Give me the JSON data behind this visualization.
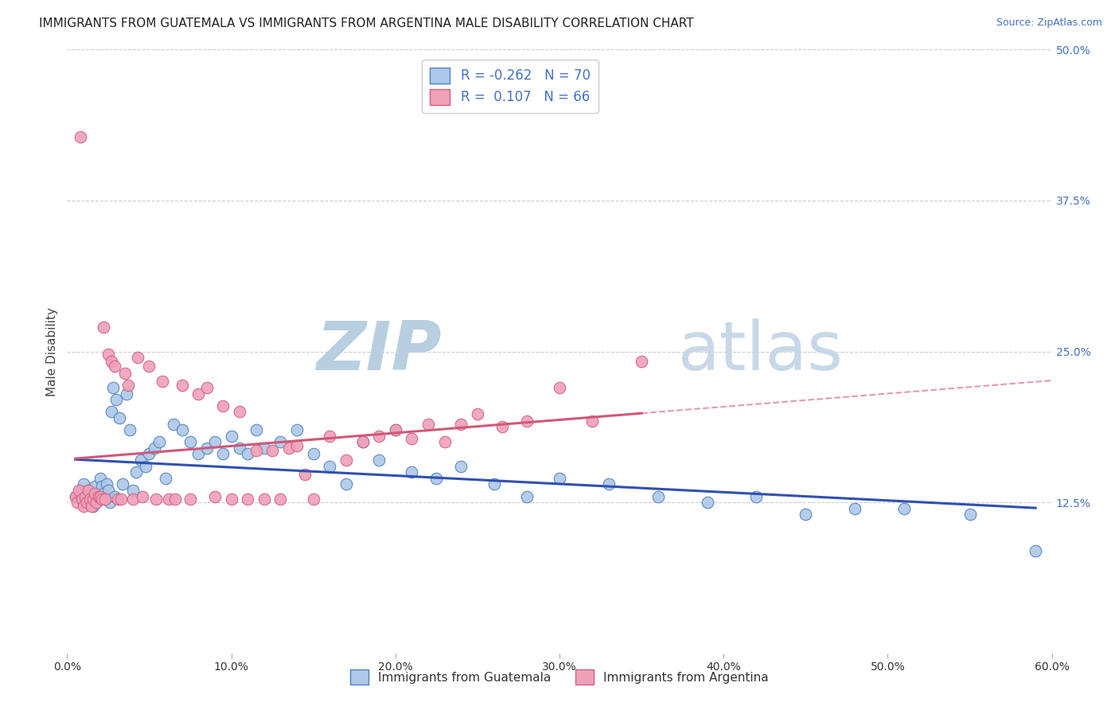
{
  "title": "IMMIGRANTS FROM GUATEMALA VS IMMIGRANTS FROM ARGENTINA MALE DISABILITY CORRELATION CHART",
  "source": "Source: ZipAtlas.com",
  "xlabel_blue": "Immigrants from Guatemala",
  "xlabel_pink": "Immigrants from Argentina",
  "ylabel": "Male Disability",
  "watermark_zip": "ZIP",
  "watermark_atlas": "atlas",
  "legend_blue_R": "-0.262",
  "legend_blue_N": "70",
  "legend_pink_R": "0.107",
  "legend_pink_N": "66",
  "xlim": [
    0.0,
    0.6
  ],
  "ylim": [
    0.0,
    0.5
  ],
  "xticks": [
    0.0,
    0.1,
    0.2,
    0.3,
    0.4,
    0.5,
    0.6
  ],
  "xtick_labels": [
    "0.0%",
    "10.0%",
    "20.0%",
    "30.0%",
    "40.0%",
    "50.0%",
    "60.0%"
  ],
  "yticks": [
    0.0,
    0.125,
    0.25,
    0.375,
    0.5
  ],
  "ytick_labels": [
    "",
    "12.5%",
    "25.0%",
    "37.5%",
    "50.0%"
  ],
  "color_blue": "#adc8e8",
  "color_blue_edge": "#5080c0",
  "color_blue_line": "#3050b0",
  "color_pink": "#f0a0b8",
  "color_pink_edge": "#d06080",
  "color_pink_line": "#d05878",
  "blue_x": [
    0.005,
    0.008,
    0.01,
    0.011,
    0.012,
    0.013,
    0.014,
    0.015,
    0.016,
    0.017,
    0.018,
    0.019,
    0.02,
    0.021,
    0.022,
    0.023,
    0.024,
    0.025,
    0.026,
    0.027,
    0.028,
    0.029,
    0.03,
    0.032,
    0.034,
    0.036,
    0.038,
    0.04,
    0.042,
    0.045,
    0.048,
    0.05,
    0.053,
    0.056,
    0.06,
    0.065,
    0.07,
    0.075,
    0.08,
    0.085,
    0.09,
    0.095,
    0.1,
    0.105,
    0.11,
    0.115,
    0.12,
    0.13,
    0.14,
    0.15,
    0.16,
    0.17,
    0.18,
    0.19,
    0.2,
    0.21,
    0.225,
    0.24,
    0.26,
    0.28,
    0.3,
    0.33,
    0.36,
    0.39,
    0.42,
    0.45,
    0.48,
    0.51,
    0.55,
    0.59
  ],
  "blue_y": [
    0.13,
    0.135,
    0.14,
    0.125,
    0.13,
    0.135,
    0.128,
    0.132,
    0.122,
    0.138,
    0.125,
    0.13,
    0.145,
    0.138,
    0.132,
    0.128,
    0.14,
    0.135,
    0.125,
    0.2,
    0.22,
    0.13,
    0.21,
    0.195,
    0.14,
    0.215,
    0.185,
    0.135,
    0.15,
    0.16,
    0.155,
    0.165,
    0.17,
    0.175,
    0.145,
    0.19,
    0.185,
    0.175,
    0.165,
    0.17,
    0.175,
    0.165,
    0.18,
    0.17,
    0.165,
    0.185,
    0.17,
    0.175,
    0.185,
    0.165,
    0.155,
    0.14,
    0.175,
    0.16,
    0.185,
    0.15,
    0.145,
    0.155,
    0.14,
    0.13,
    0.145,
    0.14,
    0.13,
    0.125,
    0.13,
    0.115,
    0.12,
    0.12,
    0.115,
    0.085
  ],
  "pink_x": [
    0.005,
    0.006,
    0.007,
    0.008,
    0.009,
    0.01,
    0.011,
    0.012,
    0.013,
    0.014,
    0.015,
    0.016,
    0.017,
    0.018,
    0.019,
    0.02,
    0.021,
    0.022,
    0.023,
    0.025,
    0.027,
    0.029,
    0.031,
    0.033,
    0.035,
    0.037,
    0.04,
    0.043,
    0.046,
    0.05,
    0.054,
    0.058,
    0.062,
    0.066,
    0.07,
    0.075,
    0.08,
    0.085,
    0.09,
    0.095,
    0.1,
    0.105,
    0.11,
    0.115,
    0.12,
    0.125,
    0.13,
    0.135,
    0.14,
    0.145,
    0.15,
    0.16,
    0.17,
    0.18,
    0.19,
    0.2,
    0.21,
    0.22,
    0.23,
    0.24,
    0.25,
    0.265,
    0.28,
    0.3,
    0.32,
    0.35
  ],
  "pink_y": [
    0.13,
    0.125,
    0.135,
    0.428,
    0.128,
    0.122,
    0.13,
    0.125,
    0.135,
    0.128,
    0.122,
    0.128,
    0.132,
    0.125,
    0.13,
    0.13,
    0.128,
    0.27,
    0.128,
    0.248,
    0.242,
    0.238,
    0.128,
    0.128,
    0.232,
    0.222,
    0.128,
    0.245,
    0.13,
    0.238,
    0.128,
    0.225,
    0.128,
    0.128,
    0.222,
    0.128,
    0.215,
    0.22,
    0.13,
    0.205,
    0.128,
    0.2,
    0.128,
    0.168,
    0.128,
    0.168,
    0.128,
    0.17,
    0.172,
    0.148,
    0.128,
    0.18,
    0.16,
    0.175,
    0.18,
    0.185,
    0.178,
    0.19,
    0.175,
    0.19,
    0.198,
    0.188,
    0.192,
    0.22,
    0.192,
    0.242
  ],
  "grid_color": "#cccccc",
  "background_color": "#ffffff",
  "title_fontsize": 11,
  "axis_label_fontsize": 11,
  "tick_fontsize": 10,
  "legend_fontsize": 12,
  "watermark_color_zip": "#b8cfe0",
  "watermark_color_atlas": "#c8d8e8",
  "ytick_color": "#4472c4"
}
